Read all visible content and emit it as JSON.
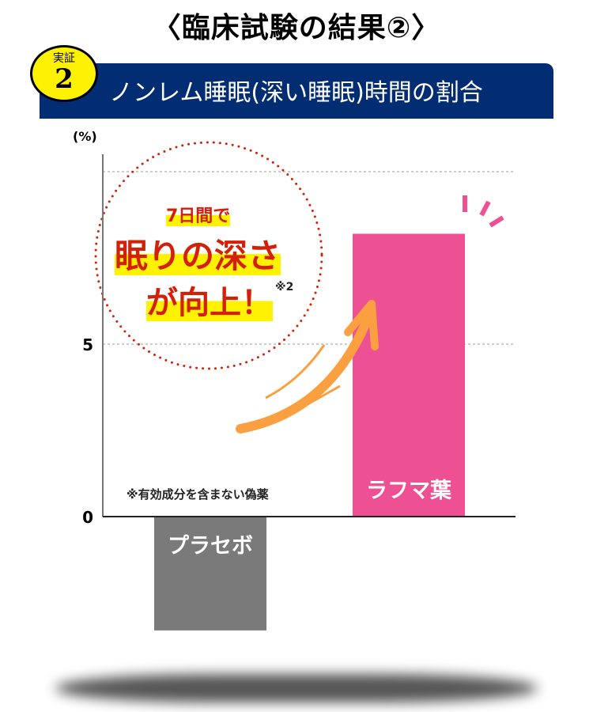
{
  "title": "〈臨床試験の結果②〉",
  "badge": {
    "label": "実証",
    "number": "2"
  },
  "banner": {
    "text": "ノンレム睡眠(深い睡眠)時間の割合"
  },
  "callout": {
    "line1": "7日間で",
    "line2": "眠りの深さ",
    "line3": "が向上！",
    "footnote": "※2"
  },
  "note": "※有効成分を含まない偽薬",
  "colors": {
    "banner": "#032d73",
    "badge": "#fff200",
    "placebo": "#7a7a7a",
    "rafuma": "#ee5193",
    "arrow": "#fba040",
    "callout_text": "#d32008"
  },
  "chart_data": {
    "type": "bar",
    "categories": [
      "プラセボ",
      "ラフマ葉"
    ],
    "values": [
      -3.3,
      8.2
    ],
    "ylabel": "(%)",
    "ylim": [
      -3.3,
      10
    ],
    "yticks": [
      0,
      5
    ],
    "gridlines": [
      5,
      10
    ],
    "grid": true
  }
}
